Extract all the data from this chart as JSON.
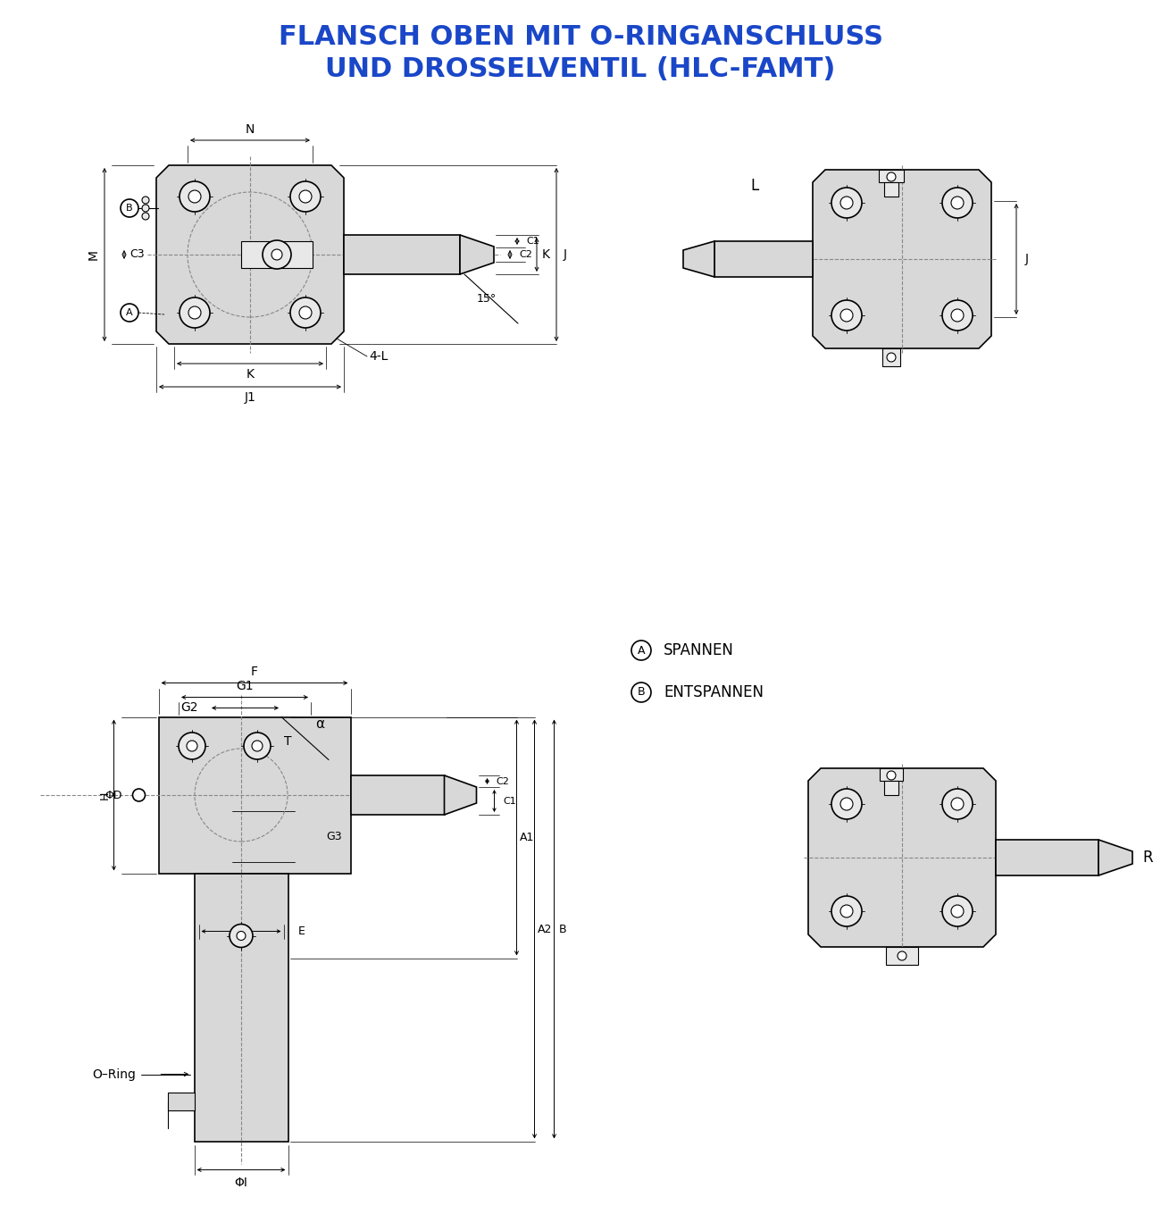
{
  "title_line1": "FLANSCH OBEN MIT O-RINGANSCHLUSS",
  "title_line2": "UND DROSSELVENTIL (HLC-FAMT)",
  "title_color": "#1a47c8",
  "title_fontsize": 22,
  "bg_color": "#ffffff",
  "drawing_color": "#000000",
  "gray_fill": "#d8d8d8",
  "light_gray": "#e8e8e8",
  "dashed_color": "#888888",
  "dim_color": "#000000",
  "label_fontsize": 11,
  "annotation_fontsize": 10,
  "legend_A": "SPANNEN",
  "legend_B": "ENTSPANNEN"
}
